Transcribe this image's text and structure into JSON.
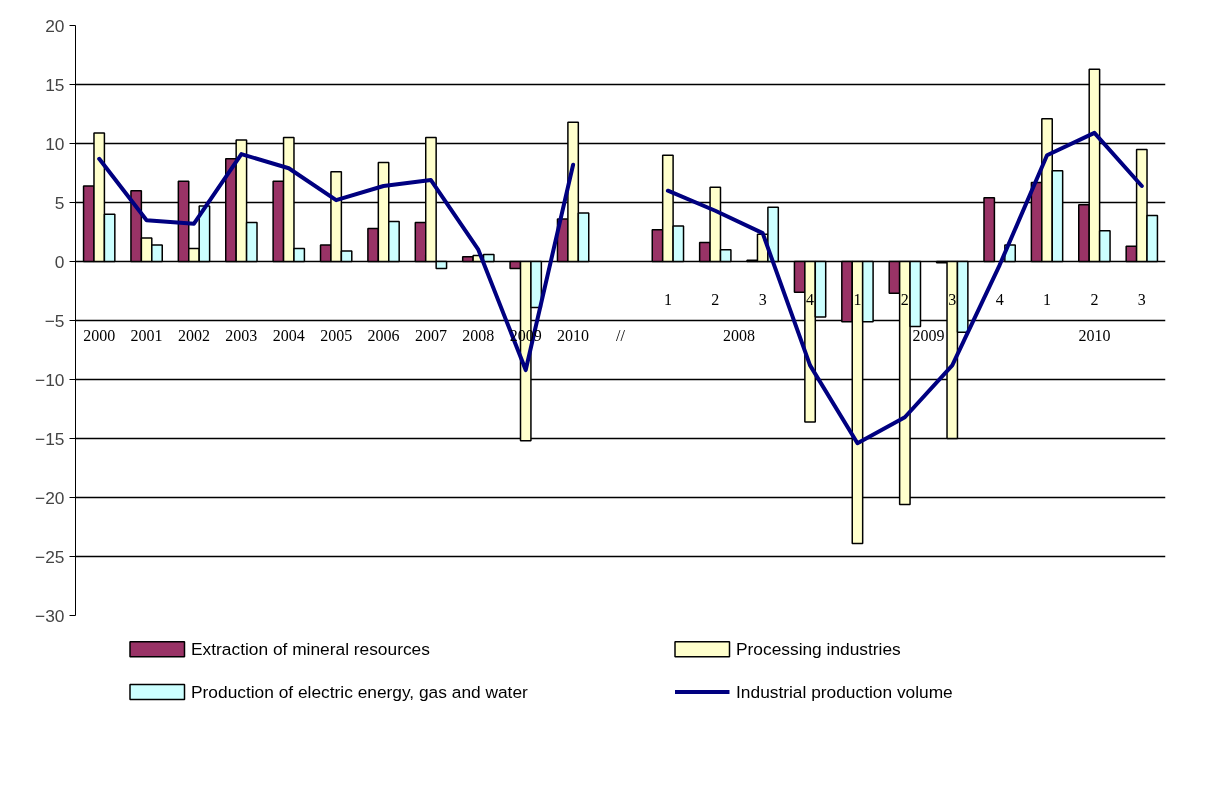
{
  "chart_data": {
    "type": "bar",
    "categories": [
      "2000",
      "2001",
      "2002",
      "2003",
      "2004",
      "2005",
      "2006",
      "2007",
      "2008",
      "2009",
      "2010",
      "//",
      "1",
      "2",
      "3",
      "4",
      "1",
      "2",
      "3",
      "4",
      "1",
      "2",
      "3"
    ],
    "series": [
      {
        "name": "Extraction of mineral resources",
        "color": "#993366",
        "values": [
          6.4,
          6.0,
          6.8,
          8.7,
          6.8,
          1.4,
          2.8,
          3.3,
          0.4,
          -0.6,
          3.6,
          null,
          2.7,
          1.6,
          0.1,
          -2.6,
          -5.1,
          -2.7,
          -0.1,
          5.4,
          6.7,
          4.8,
          1.3
        ]
      },
      {
        "name": "Processing industries",
        "color": "#ffffcc",
        "values": [
          10.9,
          2.0,
          1.1,
          10.3,
          10.5,
          7.6,
          8.4,
          10.5,
          0.5,
          -15.2,
          11.8,
          null,
          9.0,
          6.3,
          2.3,
          -13.6,
          -23.9,
          -20.6,
          -15.0,
          null,
          12.1,
          16.3,
          9.5
        ]
      },
      {
        "name": "Production of electric energy, gas and water",
        "color": "#ccffff",
        "values": [
          4.0,
          1.4,
          4.7,
          3.3,
          1.1,
          0.9,
          3.4,
          -0.6,
          0.6,
          -3.9,
          4.1,
          null,
          3.0,
          1.0,
          4.6,
          -4.7,
          -5.1,
          -5.5,
          -6.0,
          1.4,
          7.7,
          2.6,
          3.9
        ]
      },
      {
        "name": "Industrial production volume",
        "color": "#000080",
        "type": "line",
        "values": [
          8.7,
          3.5,
          3.2,
          9.1,
          7.9,
          5.2,
          6.4,
          6.9,
          1.0,
          -9.2,
          8.2,
          null,
          6.0,
          4.3,
          2.4,
          -8.8,
          -15.4,
          -13.2,
          -8.8,
          -0.3,
          9.0,
          10.9,
          6.4
        ]
      }
    ],
    "annotations": [
      "2008",
      "2009",
      "2010"
    ],
    "ylim": [
      -30,
      20
    ],
    "yticks": [
      -30,
      -25,
      -20,
      -15,
      -10,
      -5,
      0,
      5,
      10,
      15,
      20
    ],
    "grid": "y",
    "legend": "bottom",
    "line_style": "solid",
    "marker": "none"
  }
}
